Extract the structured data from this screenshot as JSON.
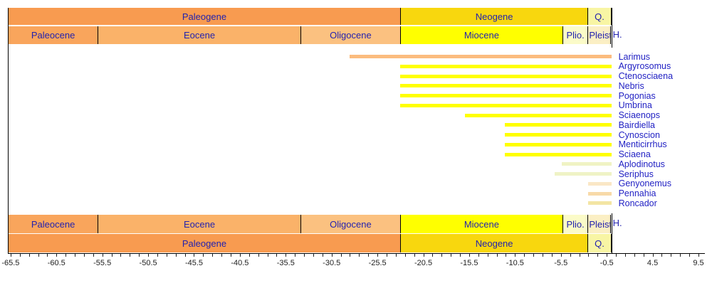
{
  "chart_data": {
    "type": "bar",
    "subtype": "taxon-range-chart",
    "orientation": "horizontal",
    "x_unit": "Ma",
    "x_axis": {
      "min": -65.8,
      "max": 10.2,
      "minor_tick_step": 1,
      "label_step": 5,
      "tick_labels": [
        -65.5,
        -60.5,
        -55.5,
        -50.5,
        -45.5,
        -40.5,
        -35.5,
        -30.5,
        -25.5,
        -20.5,
        -15.5,
        -10.5,
        -5.5,
        -0.5,
        4.5,
        9.5
      ]
    },
    "timescale": {
      "periods": [
        {
          "label": "Paleogene",
          "start": -66.0,
          "end": -23.03,
          "color": "#f89b50"
        },
        {
          "label": "Neogene",
          "start": -23.03,
          "end": -2.58,
          "color": "#f8d70e"
        },
        {
          "label": "Q.",
          "start": -2.58,
          "end": 0.0,
          "color": "#f8f5a4"
        }
      ],
      "epochs": [
        {
          "label": "Paleocene",
          "start": -66.0,
          "end": -56.0,
          "color": "#f9a55c",
          "clip": false
        },
        {
          "label": "Eocene",
          "start": -56.0,
          "end": -33.9,
          "color": "#fab269",
          "clip": false
        },
        {
          "label": "Oligocene",
          "start": -33.9,
          "end": -23.03,
          "color": "#fbc180",
          "clip": false
        },
        {
          "label": "Miocene",
          "start": -23.03,
          "end": -5.333,
          "color": "#ffff00",
          "clip": false
        },
        {
          "label": "Plio.",
          "start": -5.333,
          "end": -2.58,
          "color": "#fbfbc8",
          "clip": false
        },
        {
          "label": "Pleist.",
          "start": -2.58,
          "end": -0.0117,
          "color": "#fbefc4",
          "clip": true
        }
      ],
      "holocene_overflow_label": "H."
    },
    "taxa": [
      {
        "name": "Larimus",
        "start": -28.5,
        "end": 0,
        "color": "#fbbc7e"
      },
      {
        "name": "Argyrosomus",
        "start": -23.03,
        "end": 0,
        "color": "#ffff00"
      },
      {
        "name": "Ctenosciaena",
        "start": -23.03,
        "end": 0,
        "color": "#ffff00"
      },
      {
        "name": "Nebris",
        "start": -23.03,
        "end": 0,
        "color": "#ffff00"
      },
      {
        "name": "Pogonias",
        "start": -23.03,
        "end": 0,
        "color": "#ffff00"
      },
      {
        "name": "Umbrina",
        "start": -23.03,
        "end": 0,
        "color": "#ffff00"
      },
      {
        "name": "Sciaenops",
        "start": -16.0,
        "end": 0,
        "color": "#ffff00"
      },
      {
        "name": "Bairdiella",
        "start": -11.6,
        "end": 0,
        "color": "#ffff00"
      },
      {
        "name": "Cynoscion",
        "start": -11.6,
        "end": 0,
        "color": "#ffff00"
      },
      {
        "name": "Menticirrhus",
        "start": -11.6,
        "end": 0,
        "color": "#ffff00"
      },
      {
        "name": "Sciaena",
        "start": -11.6,
        "end": 0,
        "color": "#ffff00"
      },
      {
        "name": "Aplodinotus",
        "start": -5.4,
        "end": 0,
        "color": "#f0f3c4"
      },
      {
        "name": "Seriphus",
        "start": -6.2,
        "end": 0,
        "color": "#eff3c6"
      },
      {
        "name": "Genyonemus",
        "start": -2.5,
        "end": 0,
        "color": "#fae7c6"
      },
      {
        "name": "Pennahia",
        "start": -2.5,
        "end": 0,
        "color": "#f8daa8"
      },
      {
        "name": "Roncador",
        "start": -2.5,
        "end": 0,
        "color": "#f3e5a3"
      }
    ]
  }
}
